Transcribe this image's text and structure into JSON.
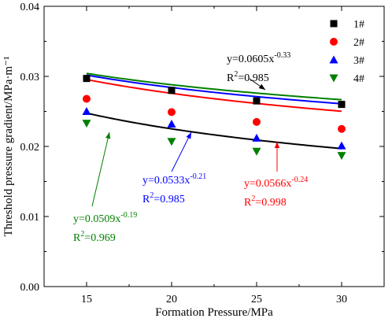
{
  "chart_data": {
    "type": "scatter",
    "title": "",
    "xlabel": "Formation Pressure/MPa",
    "ylabel": "Threshold pressure gradient/MPa·m⁻¹",
    "xlim": [
      12.5,
      32.5
    ],
    "ylim": [
      0.0,
      0.04
    ],
    "xticks": [
      "15",
      "20",
      "25",
      "30"
    ],
    "yticks": [
      "0.00",
      "0.01",
      "0.02",
      "0.03",
      "0.04"
    ],
    "grid": false,
    "legend_position": "top-right",
    "x": [
      15,
      20,
      25,
      30
    ],
    "series": [
      {
        "name": "1#",
        "marker": "square",
        "color": "#000000",
        "values": [
          0.0297,
          0.028,
          0.0265,
          0.026
        ],
        "fit": {
          "a": 0.0605,
          "b": -0.33,
          "r2": "0.985"
        },
        "equation": {
          "base": "y=0.0605x",
          "exp": "-0.33",
          "r2_prefix": "R",
          "r2_sup": "2",
          "r2_value": "=0.985"
        }
      },
      {
        "name": "2#",
        "marker": "circle",
        "color": "#ff0000",
        "values": [
          0.0268,
          0.0249,
          0.0235,
          0.0225
        ],
        "fit": {
          "a": 0.0566,
          "b": -0.24,
          "r2": "0.998"
        },
        "equation": {
          "base": "y=0.0566x",
          "exp": "-0.24",
          "r2_prefix": "R",
          "r2_sup": "2",
          "r2_value": "=0.998"
        }
      },
      {
        "name": "3#",
        "marker": "triangle-up",
        "color": "#0000ff",
        "values": [
          0.025,
          0.0232,
          0.0212,
          0.0201
        ],
        "fit": {
          "a": 0.0533,
          "b": -0.21,
          "r2": "0.985"
        },
        "equation": {
          "base": "y=0.0533x",
          "exp": "-0.21",
          "r2_prefix": "R",
          "r2_sup": "2",
          "r2_value": "=0.985"
        }
      },
      {
        "name": "4#",
        "marker": "triangle-down",
        "color": "#008000",
        "values": [
          0.0233,
          0.0207,
          0.0193,
          0.0187
        ],
        "fit": {
          "a": 0.0509,
          "b": -0.19,
          "r2": "0.969"
        },
        "equation": {
          "base": "y=0.0509x",
          "exp": "-0.19",
          "r2_prefix": "R",
          "r2_sup": "2",
          "r2_value": "=0.969"
        }
      }
    ]
  }
}
